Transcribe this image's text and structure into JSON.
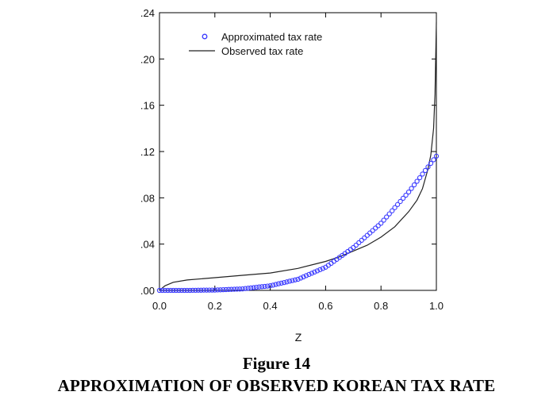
{
  "caption": {
    "figure_number": "Figure 14",
    "title": "APPROXIMATION OF OBSERVED KOREAN TAX RATE"
  },
  "colors": {
    "approximated": "#3b3bff",
    "observed": "#222222",
    "axis": "#000000"
  },
  "chart_data": {
    "type": "line",
    "title": "",
    "xlabel": "Z",
    "ylabel": "",
    "xlim": [
      0.0,
      1.0
    ],
    "ylim": [
      0.0,
      0.24
    ],
    "x_ticks": [
      "0.0",
      "0.2",
      "0.4",
      "0.6",
      "0.8",
      "1.0"
    ],
    "y_ticks": [
      ".00",
      ".04",
      ".08",
      ".12",
      ".16",
      ".20",
      ".24"
    ],
    "x_tick_values": [
      0.0,
      0.2,
      0.4,
      0.6,
      0.8,
      1.0
    ],
    "y_tick_values": [
      0.0,
      0.04,
      0.08,
      0.12,
      0.16,
      0.2,
      0.24
    ],
    "legend_position": "top-left",
    "grid": false,
    "series": [
      {
        "name": "Approximated tax rate",
        "style": "markers",
        "marker": "open-circle",
        "color": "#3b3bff",
        "x": [
          0.0,
          0.1,
          0.2,
          0.3,
          0.4,
          0.5,
          0.6,
          0.7,
          0.8,
          0.9,
          1.0
        ],
        "y": [
          0.0,
          0.0,
          0.0003,
          0.0013,
          0.004,
          0.0096,
          0.02,
          0.037,
          0.058,
          0.085,
          0.116
        ]
      },
      {
        "name": "Observed tax rate",
        "style": "line",
        "color": "#222222",
        "x": [
          0.0,
          0.02,
          0.05,
          0.1,
          0.2,
          0.3,
          0.4,
          0.5,
          0.6,
          0.65,
          0.7,
          0.75,
          0.8,
          0.85,
          0.9,
          0.93,
          0.95,
          0.97,
          0.98,
          0.99,
          0.995,
          1.0
        ],
        "y": [
          0.0,
          0.004,
          0.007,
          0.009,
          0.011,
          0.013,
          0.015,
          0.019,
          0.025,
          0.029,
          0.034,
          0.039,
          0.046,
          0.055,
          0.068,
          0.078,
          0.088,
          0.105,
          0.117,
          0.14,
          0.17,
          0.232
        ]
      }
    ]
  }
}
